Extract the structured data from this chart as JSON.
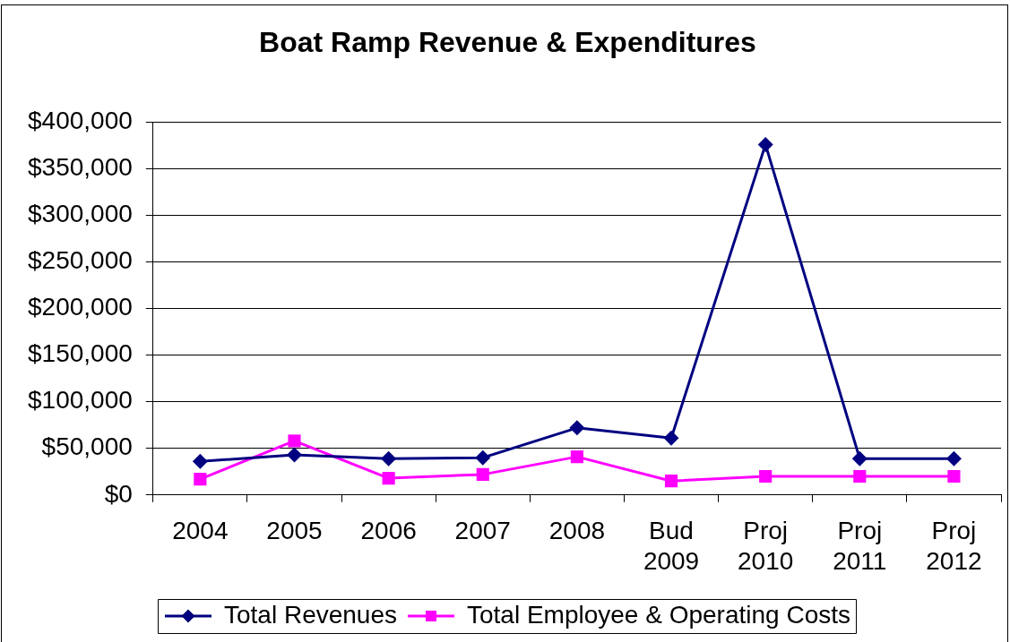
{
  "chart_data": {
    "type": "line",
    "title": "Boat Ramp Revenue & Expenditures",
    "categories": [
      "2004",
      "2005",
      "2006",
      "2007",
      "2008",
      "Bud 2009",
      "Proj 2010",
      "Proj 2011",
      "Proj 2012"
    ],
    "series": [
      {
        "name": "Total Revenues",
        "color": "#000080",
        "marker": "diamond",
        "values": [
          36000,
          43000,
          39000,
          40000,
          72000,
          61000,
          376000,
          39000,
          39000
        ]
      },
      {
        "name": "Total Employee & Operating Costs",
        "color": "#ff00ff",
        "marker": "square",
        "values": [
          17000,
          58000,
          18000,
          22000,
          41000,
          15000,
          20000,
          20000,
          20000
        ]
      }
    ],
    "ylim": [
      0,
      400000
    ],
    "yticks": [
      {
        "value": 0,
        "label": "$0"
      },
      {
        "value": 50000,
        "label": "$50,000"
      },
      {
        "value": 100000,
        "label": "$100,000"
      },
      {
        "value": 150000,
        "label": "$150,000"
      },
      {
        "value": 200000,
        "label": "$200,000"
      },
      {
        "value": 250000,
        "label": "$250,000"
      },
      {
        "value": 300000,
        "label": "$300,000"
      },
      {
        "value": 350000,
        "label": "$350,000"
      },
      {
        "value": 400000,
        "label": "$400,000"
      }
    ],
    "grid": "y",
    "legend": "bottom",
    "line_style": "solid"
  }
}
